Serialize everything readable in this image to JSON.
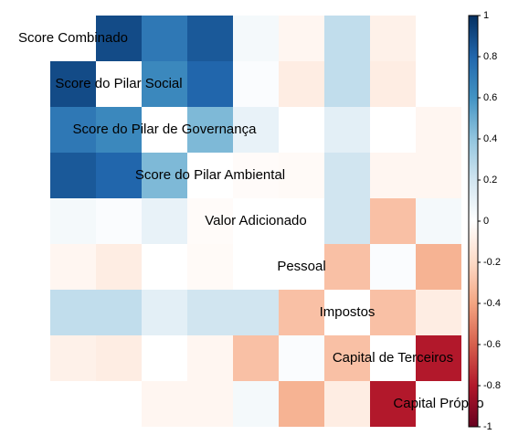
{
  "chart_data": {
    "type": "heatmap",
    "categories": [
      "Score Combinado",
      "Score do Pilar Social",
      "Score do Pilar de Governança",
      "Score do Pilar Ambiental",
      "Valor Adicionado",
      "Pessoal",
      "Impostos",
      "Capital de Terceiros",
      "Capital Próprio"
    ],
    "values": [
      [
        null,
        0.9,
        0.72,
        0.85,
        0.05,
        -0.05,
        0.25,
        -0.08,
        0
      ],
      [
        0.9,
        null,
        0.65,
        0.8,
        0.02,
        -0.1,
        0.25,
        -0.1,
        0
      ],
      [
        0.72,
        0.65,
        null,
        0.45,
        0.1,
        0,
        0.12,
        0,
        -0.05
      ],
      [
        0.85,
        0.8,
        0.45,
        null,
        -0.02,
        -0.03,
        0.2,
        -0.05,
        -0.05
      ],
      [
        0.05,
        0.02,
        0.1,
        -0.02,
        null,
        0,
        0.2,
        -0.3,
        0.05
      ],
      [
        -0.05,
        -0.1,
        0,
        -0.03,
        0,
        null,
        -0.3,
        0.02,
        -0.35
      ],
      [
        0.25,
        0.25,
        0.12,
        0.2,
        0.2,
        -0.3,
        null,
        -0.3,
        -0.1
      ],
      [
        -0.08,
        -0.1,
        0,
        -0.05,
        -0.3,
        0.02,
        -0.3,
        null,
        -0.8
      ],
      [
        0,
        0,
        -0.05,
        -0.05,
        0.05,
        -0.35,
        -0.1,
        -0.8,
        null
      ]
    ],
    "colors": [
      "#67001F",
      "#B2182B",
      "#D6604D",
      "#F4A582",
      "#FDDBC7",
      "#FFFFFF",
      "#D1E5F0",
      "#92C5DE",
      "#4393C3",
      "#2166AC",
      "#053061"
    ],
    "zlim": [
      -1,
      1
    ],
    "zticks": [
      1,
      0.8,
      0.6,
      0.4,
      0.2,
      0,
      -0.2,
      -0.4,
      -0.6,
      -0.8,
      -1
    ]
  }
}
